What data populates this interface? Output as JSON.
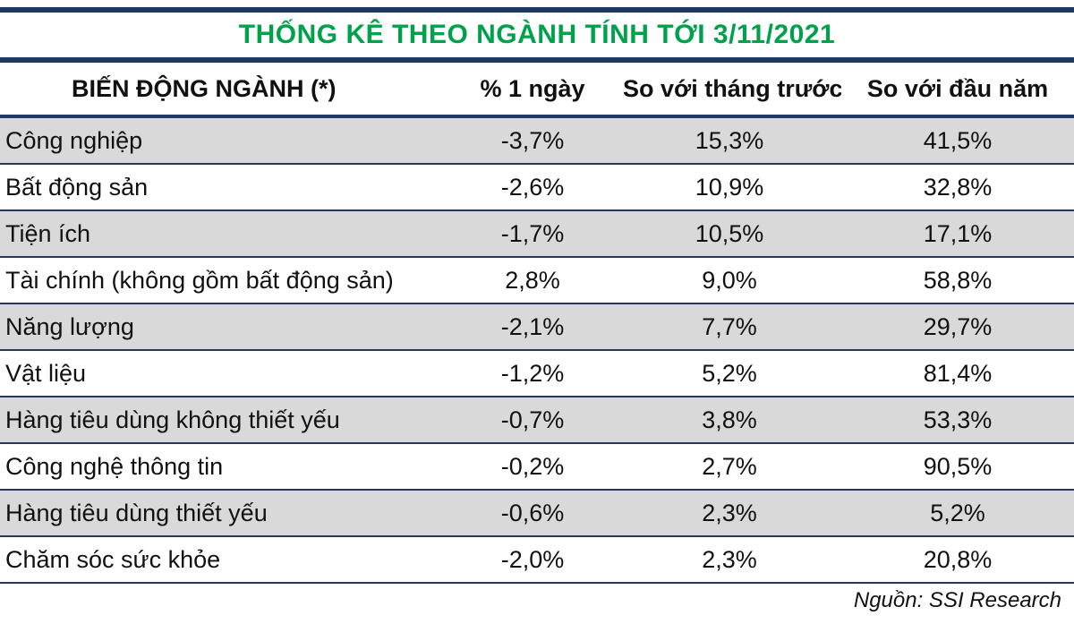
{
  "colors": {
    "title_green": "#00A14B",
    "border_navy": "#1F3864",
    "row_gray": "#D9D9D9"
  },
  "chart_data": {
    "type": "table",
    "title": "THỐNG KÊ THEO NGÀNH TÍNH TỚI 3/11/2021",
    "columns": [
      "BIẾN ĐỘNG NGÀNH (*)",
      "% 1 ngày",
      "So với tháng trước",
      "So với đầu năm"
    ],
    "rows": [
      [
        "Công nghiệp",
        "-3,7%",
        "15,3%",
        "41,5%"
      ],
      [
        "Bất động sản",
        "-2,6%",
        "10,9%",
        "32,8%"
      ],
      [
        "Tiện ích",
        "-1,7%",
        "10,5%",
        "17,1%"
      ],
      [
        "Tài chính (không gồm bất động sản)",
        "2,8%",
        "9,0%",
        "58,8%"
      ],
      [
        "Năng lượng",
        "-2,1%",
        "7,7%",
        "29,7%"
      ],
      [
        "Vật liệu",
        "-1,2%",
        "5,2%",
        "81,4%"
      ],
      [
        "Hàng tiêu dùng không thiết yếu",
        "-0,7%",
        "3,8%",
        "53,3%"
      ],
      [
        "Công nghệ thông tin",
        "-0,2%",
        "2,7%",
        "90,5%"
      ],
      [
        "Hàng tiêu dùng thiết yếu",
        "-0,6%",
        "2,3%",
        "5,2%"
      ],
      [
        "Chăm sóc sức khỏe",
        "-2,0%",
        "2,3%",
        "20,8%"
      ]
    ],
    "source": "Nguồn: SSI Research",
    "layout": {
      "alternating_rows": true,
      "first_data_row_shaded": true,
      "numeric_columns_centered": true
    }
  }
}
